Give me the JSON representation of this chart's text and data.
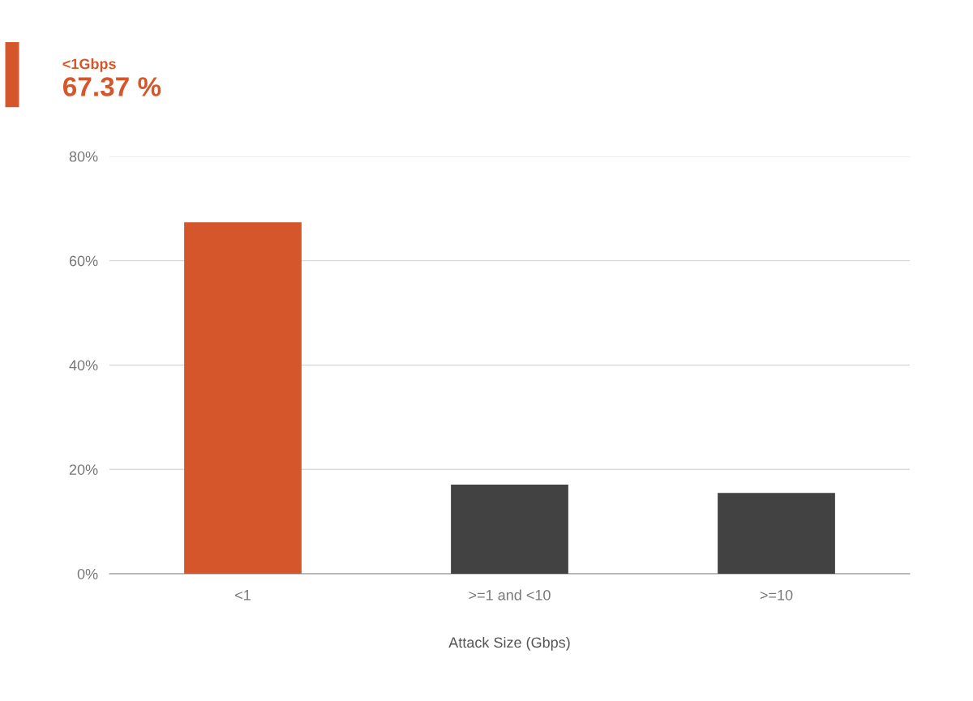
{
  "chart_data": {
    "type": "bar",
    "title": "<1Gbps",
    "subtitle": "67.37 %",
    "xlabel": "Attack Size (Gbps)",
    "categories": [
      "<1",
      ">=1 and <10",
      ">=10"
    ],
    "values": [
      67.37,
      17.1,
      15.5
    ],
    "colors": [
      "#d6562b",
      "#424242",
      "#424242"
    ],
    "ylim": [
      0,
      80
    ],
    "yticks": [
      {
        "value": 0,
        "label": "0%"
      },
      {
        "value": 20,
        "label": "20%"
      },
      {
        "value": 40,
        "label": "40%"
      },
      {
        "value": 60,
        "label": "60%"
      },
      {
        "value": 80,
        "label": "80%"
      }
    ],
    "grid": "y"
  }
}
